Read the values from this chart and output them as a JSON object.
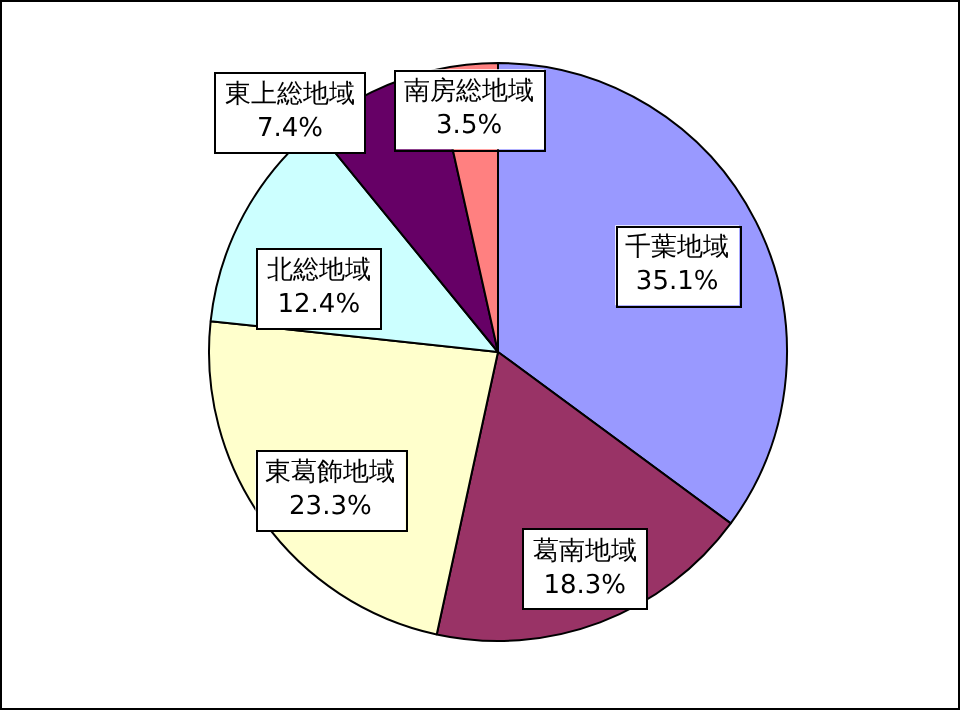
{
  "chart_data": {
    "type": "pie",
    "categories": [
      "千葉地域",
      "葛南地域",
      "東葛飾地域",
      "北総地域",
      "東上総地域",
      "南房総地域"
    ],
    "values": [
      35.1,
      18.3,
      23.3,
      12.4,
      7.4,
      3.5
    ],
    "value_labels": [
      "35.1%",
      "18.3%",
      "23.3%",
      "12.4%",
      "7.4%",
      "3.5%"
    ],
    "colors": [
      "#9999ff",
      "#993366",
      "#ffffcc",
      "#ccffff",
      "#660066",
      "#ff8080"
    ]
  }
}
